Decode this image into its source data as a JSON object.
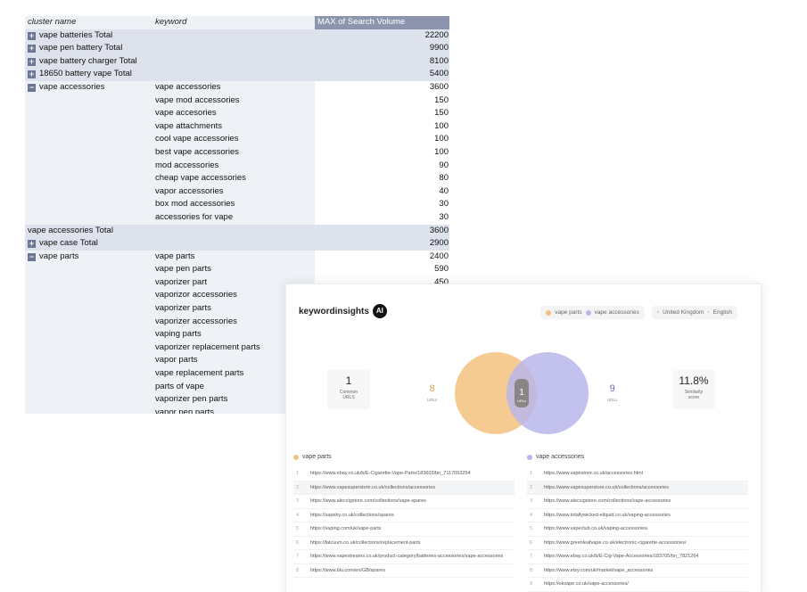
{
  "sheet": {
    "headers": {
      "cluster": "cluster name",
      "keyword": "keyword",
      "value": "MAX of Search Volume"
    },
    "rows": [
      {
        "kind": "total",
        "toggle": "+",
        "cluster": "vape batteries Total",
        "keyword": "",
        "value": "22200"
      },
      {
        "kind": "total",
        "toggle": "+",
        "cluster": "vape pen battery Total",
        "keyword": "",
        "value": "9900"
      },
      {
        "kind": "total",
        "toggle": "+",
        "cluster": "vape battery charger Total",
        "keyword": "",
        "value": "8100"
      },
      {
        "kind": "total",
        "toggle": "+",
        "cluster": "18650 battery vape Total",
        "keyword": "",
        "value": "5400"
      },
      {
        "kind": "child",
        "toggle": "−",
        "cluster": "vape accessories",
        "keyword": "vape accessories",
        "value": "3600"
      },
      {
        "kind": "child",
        "toggle": "",
        "cluster": "",
        "keyword": "vape mod accessories",
        "value": "150"
      },
      {
        "kind": "child",
        "toggle": "",
        "cluster": "",
        "keyword": "vape accesories",
        "value": "150"
      },
      {
        "kind": "child",
        "toggle": "",
        "cluster": "",
        "keyword": "vape attachments",
        "value": "100"
      },
      {
        "kind": "child",
        "toggle": "",
        "cluster": "",
        "keyword": "cool vape accessories",
        "value": "100"
      },
      {
        "kind": "child",
        "toggle": "",
        "cluster": "",
        "keyword": "best vape accessories",
        "value": "100"
      },
      {
        "kind": "child",
        "toggle": "",
        "cluster": "",
        "keyword": "mod accessories",
        "value": "90"
      },
      {
        "kind": "child",
        "toggle": "",
        "cluster": "",
        "keyword": "cheap vape accessories",
        "value": "80"
      },
      {
        "kind": "child",
        "toggle": "",
        "cluster": "",
        "keyword": "vapor accessories",
        "value": "40"
      },
      {
        "kind": "child",
        "toggle": "",
        "cluster": "",
        "keyword": "box mod accessories",
        "value": "30"
      },
      {
        "kind": "child",
        "toggle": "",
        "cluster": "",
        "keyword": "accessories for vape",
        "value": "30"
      },
      {
        "kind": "total",
        "toggle": "",
        "cluster": "vape accessories Total",
        "keyword": "",
        "value": "3600"
      },
      {
        "kind": "total",
        "toggle": "+",
        "cluster": "vape case Total",
        "keyword": "",
        "value": "2900"
      },
      {
        "kind": "child",
        "toggle": "−",
        "cluster": "vape parts",
        "keyword": "vape parts",
        "value": "2400"
      },
      {
        "kind": "child",
        "toggle": "",
        "cluster": "",
        "keyword": "vape pen parts",
        "value": "590"
      },
      {
        "kind": "child",
        "toggle": "",
        "cluster": "",
        "keyword": "vaporizer part",
        "value": "450"
      },
      {
        "kind": "child",
        "toggle": "",
        "cluster": "",
        "keyword": "vaporizor accessories",
        "value": ""
      },
      {
        "kind": "child",
        "toggle": "",
        "cluster": "",
        "keyword": "vaporizer parts",
        "value": ""
      },
      {
        "kind": "child",
        "toggle": "",
        "cluster": "",
        "keyword": "vaporizer accessories",
        "value": ""
      },
      {
        "kind": "child",
        "toggle": "",
        "cluster": "",
        "keyword": "vaping parts",
        "value": ""
      },
      {
        "kind": "child",
        "toggle": "",
        "cluster": "",
        "keyword": "vaporizer replacement parts",
        "value": ""
      },
      {
        "kind": "child",
        "toggle": "",
        "cluster": "",
        "keyword": "vapor parts",
        "value": ""
      },
      {
        "kind": "child",
        "toggle": "",
        "cluster": "",
        "keyword": "vape replacement parts",
        "value": ""
      },
      {
        "kind": "child",
        "toggle": "",
        "cluster": "",
        "keyword": "parts of vape",
        "value": ""
      },
      {
        "kind": "child",
        "toggle": "",
        "cluster": "",
        "keyword": "vaporizer pen parts",
        "value": ""
      },
      {
        "kind": "child",
        "toggle": "",
        "cluster": "",
        "keyword": "vapor pen parts",
        "value": ""
      }
    ]
  },
  "ki": {
    "logo_text": "keywordinsights",
    "logo_ai": "AI",
    "filters": {
      "left_label": "vape parts",
      "right_label": "vape accessories",
      "country": "United Kingdom",
      "language": "English"
    },
    "colors": {
      "left": "#f4c27f",
      "right": "#b8b6ea",
      "overlap": "#8a8686"
    },
    "stats": {
      "common": {
        "value": "1",
        "label_1": "Common",
        "label_2": "URLS"
      },
      "left": {
        "value": "8",
        "label": "URLs"
      },
      "overlap": {
        "value": "1",
        "label": "URLs"
      },
      "right": {
        "value": "9",
        "label": "URLs"
      },
      "similarity": {
        "value": "11.8%",
        "label_1": "Similarity",
        "label_2": "score"
      }
    },
    "left_list": {
      "title": "vape parts",
      "items": [
        "https://www.ebay.co.uk/b/E-Cigarette-Vape-Parts/183603/bn_7117093254",
        "https://www.vapesuperstore.co.uk/collections/accessories",
        "https://www.aleccigstore.com/collections/vape-spares",
        "https://vapeby.co.uk/collections/spares",
        "https://vaping.com/uk/vape-parts",
        "https://falcuum.co.uk/collections/replacement-parts",
        "https://www.vapestreams.co.uk/product-category/batteries-accessories/vape-accessories",
        "https://www.blu.com/en/GB/spares"
      ]
    },
    "right_list": {
      "title": "vape accessories",
      "items": [
        "https://www.vapestore.co.uk/accessories.html",
        "https://www.vapesuperstore.co.uk/collections/accessories",
        "https://www.aleccigstore.com/collections/vape-accessories",
        "https://www.totallywicked-eliquid.co.uk/vaping-accessories",
        "https://www.vapeclub.co.uk/vaping-accessories/",
        "https://www.greenleafvape.co.uk/electronic-cigarette-accessories/",
        "https://www.ebay.co.uk/b/E-Cig-Vape-Accessories/183705/bn_7821264",
        "https://www.etsy.com/uk/market/vape_accessories",
        "https://okvape.co.uk/vape-accessories/"
      ]
    }
  }
}
